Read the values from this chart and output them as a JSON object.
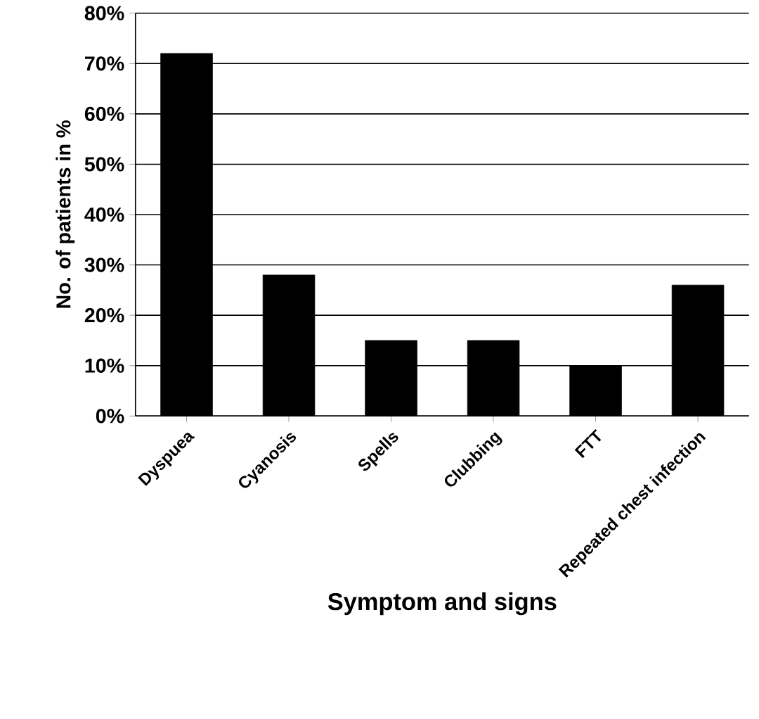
{
  "chart_data": {
    "type": "bar",
    "xlabel": "Symptom and signs",
    "ylabel": "No. of patients in %",
    "categories": [
      "Dyspuea",
      "Cyanosis",
      "Spells",
      "Clubbing",
      "FTT",
      "Repeated chest infection"
    ],
    "values": [
      72,
      28,
      15,
      15,
      10,
      26
    ],
    "color": "#000000",
    "ylim": [
      0,
      80
    ],
    "yticks": [
      {
        "value": 0,
        "label": "0%"
      },
      {
        "value": 10,
        "label": "10%"
      },
      {
        "value": 20,
        "label": "20%"
      },
      {
        "value": 30,
        "label": "30%"
      },
      {
        "value": 40,
        "label": "40%"
      },
      {
        "value": 50,
        "label": "50%"
      },
      {
        "value": 60,
        "label": "60%"
      },
      {
        "value": 70,
        "label": "70%"
      },
      {
        "value": 80,
        "label": "80%"
      }
    ],
    "grid": "y"
  }
}
